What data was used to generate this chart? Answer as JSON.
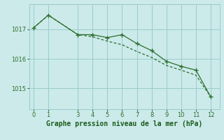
{
  "line1_x": [
    0,
    1,
    3,
    4,
    5,
    6,
    7,
    8,
    9,
    10,
    11,
    12
  ],
  "line1_y": [
    1017.05,
    1017.48,
    1016.82,
    1016.82,
    1016.72,
    1016.82,
    1016.52,
    1016.28,
    1015.92,
    1015.75,
    1015.62,
    1014.72
  ],
  "line2_x": [
    0,
    1,
    3,
    4,
    5,
    6,
    7,
    8,
    9,
    10,
    11,
    12
  ],
  "line2_y": [
    1017.05,
    1017.48,
    1016.82,
    1016.75,
    1016.6,
    1016.48,
    1016.25,
    1016.05,
    1015.78,
    1015.62,
    1015.45,
    1014.72
  ],
  "line_color": "#2d6e2d",
  "bg_color": "#cceaea",
  "grid_color": "#99cccc",
  "xlabel": "Graphe pression niveau de la mer (hPa)",
  "xlabel_color": "#1a5c1a",
  "xlabel_fontsize": 7,
  "yticks": [
    1015,
    1016,
    1017
  ],
  "xticks": [
    0,
    1,
    3,
    4,
    5,
    6,
    7,
    8,
    9,
    10,
    11,
    12
  ],
  "ylim": [
    1014.3,
    1017.85
  ],
  "xlim": [
    -0.3,
    12.6
  ],
  "tick_fontsize": 6
}
